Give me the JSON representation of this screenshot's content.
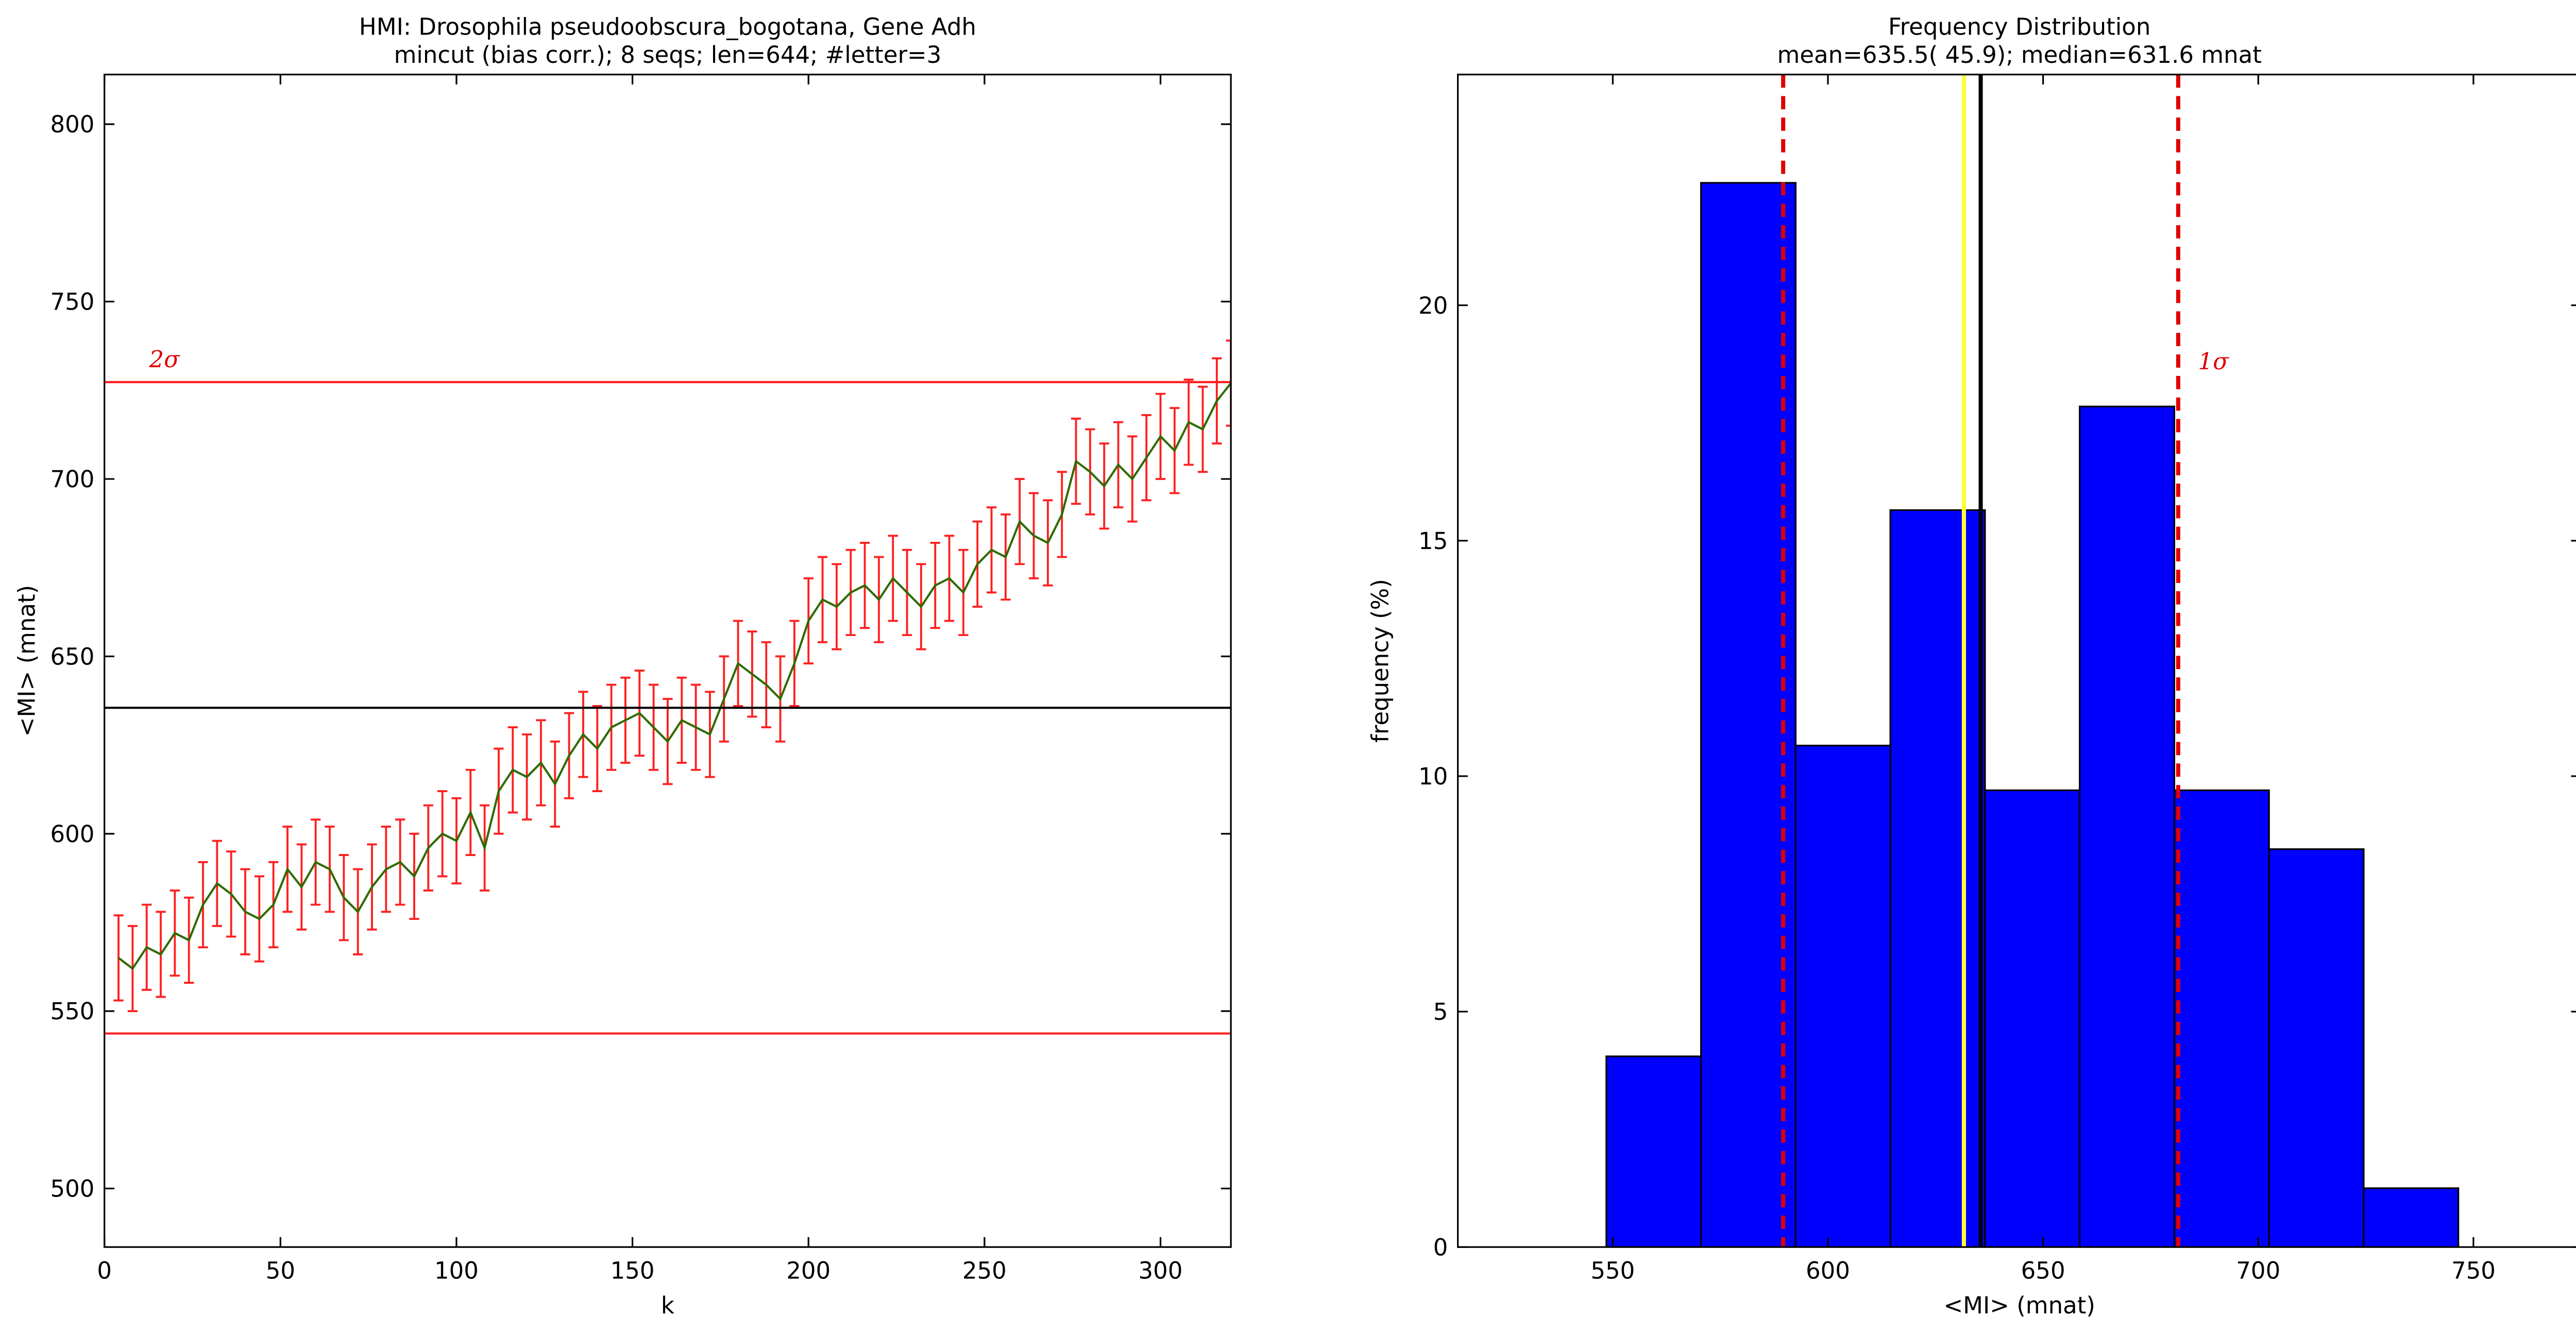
{
  "chart_data": [
    {
      "type": "line",
      "title": "HMI: Drosophila pseudoobscura_bogotana, Gene Adh",
      "subtitle": "mincut (bias corr.); 8 seqs; len=644; #letter=3",
      "x_label": "k",
      "y_label": "<MI> (mnat)",
      "xlim": [
        0,
        320
      ],
      "xticks": [
        0,
        50,
        100,
        150,
        200,
        250,
        300
      ],
      "ylim": [
        483.5,
        814
      ],
      "yticks": [
        500,
        550,
        600,
        650,
        700,
        750,
        800
      ],
      "color": "#2e6b00",
      "error_color": "#ff2020",
      "x": [
        4,
        8,
        12,
        16,
        20,
        24,
        28,
        32,
        36,
        40,
        44,
        48,
        52,
        56,
        60,
        64,
        68,
        72,
        76,
        80,
        84,
        88,
        92,
        96,
        100,
        104,
        108,
        112,
        116,
        120,
        124,
        128,
        132,
        136,
        140,
        144,
        148,
        152,
        156,
        160,
        164,
        168,
        172,
        176,
        180,
        184,
        188,
        192,
        196,
        200,
        204,
        208,
        212,
        216,
        220,
        224,
        228,
        232,
        236,
        240,
        244,
        248,
        252,
        256,
        260,
        264,
        268,
        272,
        276,
        280,
        284,
        288,
        292,
        296,
        300,
        304,
        308,
        312,
        316,
        320
      ],
      "values": [
        565,
        562,
        568,
        566,
        572,
        570,
        580,
        586,
        583,
        578,
        576,
        580,
        590,
        585,
        592,
        590,
        582,
        578,
        585,
        590,
        592,
        588,
        596,
        600,
        598,
        606,
        596,
        612,
        618,
        616,
        620,
        614,
        622,
        628,
        624,
        630,
        632,
        634,
        630,
        626,
        632,
        630,
        628,
        638,
        648,
        645,
        642,
        638,
        648,
        660,
        666,
        664,
        668,
        670,
        666,
        672,
        668,
        664,
        670,
        672,
        668,
        676,
        680,
        678,
        688,
        684,
        682,
        690,
        705,
        702,
        698,
        704,
        700,
        706,
        712,
        708,
        716,
        714,
        722,
        727
      ],
      "errors": [
        12,
        12,
        12,
        12,
        12,
        12,
        12,
        12,
        12,
        12,
        12,
        12,
        12,
        12,
        12,
        12,
        12,
        12,
        12,
        12,
        12,
        12,
        12,
        12,
        12,
        12,
        12,
        12,
        12,
        12,
        12,
        12,
        12,
        12,
        12,
        12,
        12,
        12,
        12,
        12,
        12,
        12,
        12,
        12,
        12,
        12,
        12,
        12,
        12,
        12,
        12,
        12,
        12,
        12,
        12,
        12,
        12,
        12,
        12,
        12,
        12,
        12,
        12,
        12,
        12,
        12,
        12,
        12,
        12,
        12,
        12,
        12,
        12,
        12,
        12,
        12,
        12,
        12,
        12,
        12
      ],
      "hlines": [
        {
          "value": 727.3,
          "color": "#ff2020",
          "label": "2σ"
        },
        {
          "value": 635.5,
          "color": "#000000"
        },
        {
          "value": 543.7,
          "color": "#ff2020"
        }
      ]
    },
    {
      "type": "histogram",
      "title": "Frequency Distribution",
      "subtitle": "mean=635.5( 45.9); median=631.6 mnat",
      "x_label": "<MI> (mnat)",
      "y_label": "frequency (%)",
      "xlim": [
        514,
        775
      ],
      "xticks": [
        550,
        600,
        650,
        700,
        750
      ],
      "ylim": [
        0,
        24.9
      ],
      "yticks": [
        0,
        5,
        10,
        15,
        20
      ],
      "color": "#0000ff",
      "bins": [
        548.5,
        570.5,
        592.5,
        614.5,
        636.5,
        658.5,
        680.5,
        702.5,
        724.5,
        746.5
      ],
      "values": [
        4.05,
        22.6,
        10.65,
        15.65,
        9.7,
        17.85,
        9.7,
        8.45,
        1.25
      ],
      "vlines": [
        {
          "value": 589.6,
          "color": "#e00000",
          "dashed": true
        },
        {
          "value": 631.6,
          "color": "#ffff33"
        },
        {
          "value": 635.5,
          "color": "#000000"
        },
        {
          "value": 681.4,
          "color": "#e00000",
          "dashed": true,
          "label": "1σ"
        }
      ]
    }
  ]
}
